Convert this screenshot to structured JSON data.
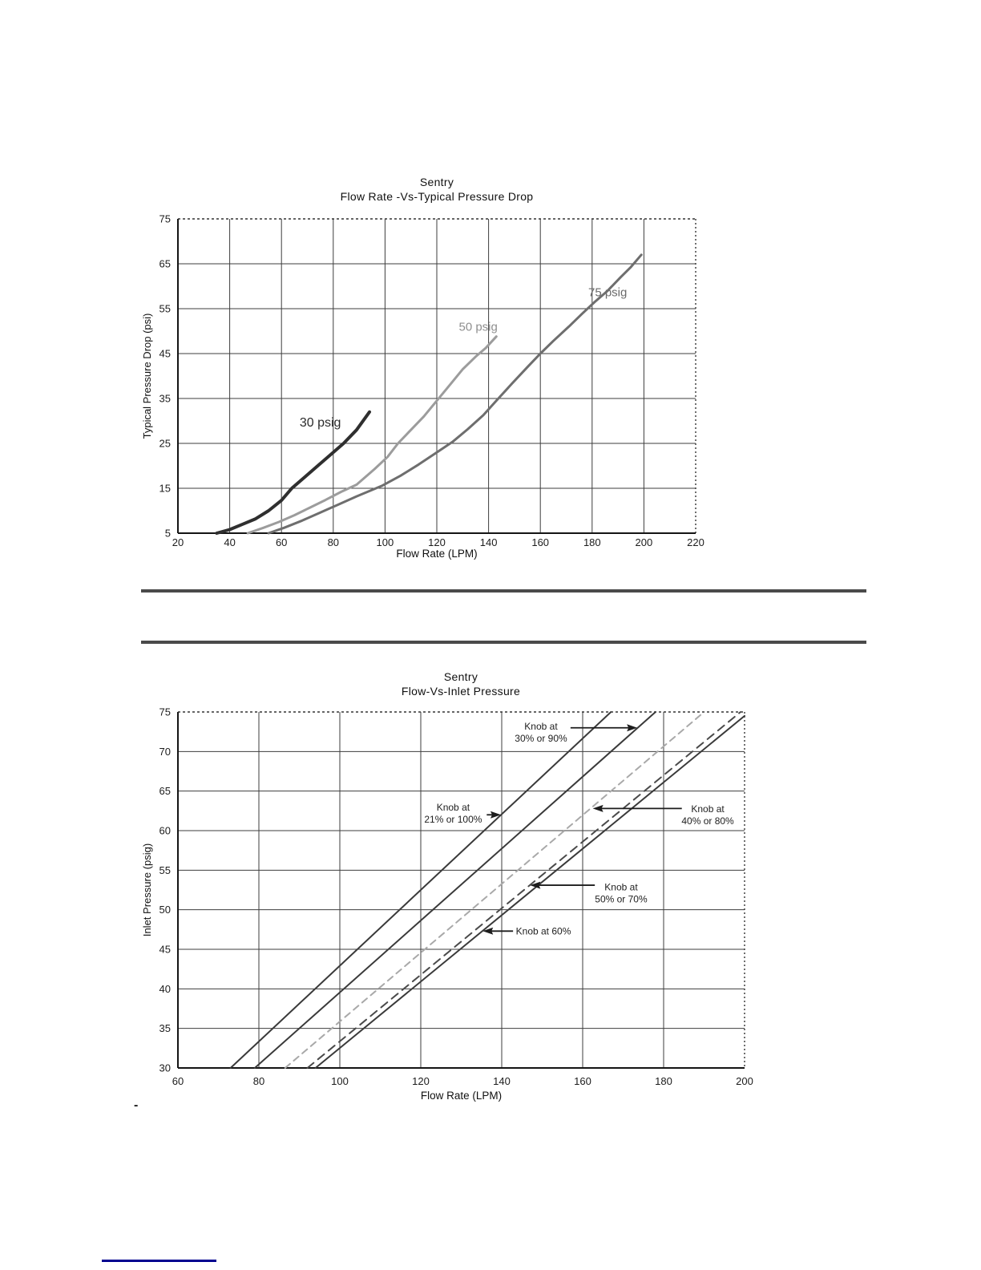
{
  "page": {
    "dash_text": "-",
    "divider_color": "#4a4a4a",
    "link_line_color": "#00008f",
    "grid_color": "#3d3d3d",
    "axis_color": "#141414",
    "text_color": "#1c1c1c"
  },
  "chart_data": [
    {
      "type": "line",
      "title": "Sentry",
      "subtitle": "Flow Rate -Vs-Typical Pressure Drop",
      "xlabel": "Flow Rate (LPM)",
      "ylabel": "Typical Pressure Drop (psi)",
      "xlim": [
        20,
        220
      ],
      "ylim": [
        5,
        75
      ],
      "xstep": 20,
      "ystep": 10,
      "grid": true,
      "legend": "inline-labels",
      "series": [
        {
          "name": "30 psig",
          "color": "#2f2f2f",
          "width": 4,
          "dash": "",
          "points": [
            [
              35,
              5
            ],
            [
              40,
              5.8
            ],
            [
              45,
              7
            ],
            [
              50,
              8.2
            ],
            [
              55,
              10
            ],
            [
              60,
              12.3
            ],
            [
              64,
              15
            ],
            [
              69,
              17.5
            ],
            [
              74,
              20
            ],
            [
              79,
              22.5
            ],
            [
              84,
              25
            ],
            [
              89,
              28
            ],
            [
              94,
              32
            ]
          ]
        },
        {
          "name": "50 psig",
          "color": "#9c9c9c",
          "width": 3,
          "dash": "",
          "points": [
            [
              47,
              5
            ],
            [
              53,
              6.2
            ],
            [
              59,
              7.5
            ],
            [
              65,
              9
            ],
            [
              71,
              10.7
            ],
            [
              77,
              12.4
            ],
            [
              83,
              14.2
            ],
            [
              89,
              15.8
            ],
            [
              96,
              19.3
            ],
            [
              101,
              22
            ],
            [
              105,
              25
            ],
            [
              110,
              28
            ],
            [
              115,
              31
            ],
            [
              120,
              34.5
            ],
            [
              125,
              38
            ],
            [
              130,
              41.5
            ],
            [
              135,
              44.3
            ],
            [
              139,
              46.3
            ],
            [
              143,
              48.8
            ]
          ]
        },
        {
          "name": "75 psig",
          "color": "#6e6e6e",
          "width": 3,
          "dash": "",
          "points": [
            [
              55,
              5
            ],
            [
              61,
              6.2
            ],
            [
              68,
              7.8
            ],
            [
              75,
              9.6
            ],
            [
              82,
              11.4
            ],
            [
              89,
              13.2
            ],
            [
              99,
              15.6
            ],
            [
              106,
              17.8
            ],
            [
              113,
              20.3
            ],
            [
              120,
              23
            ],
            [
              126,
              25.3
            ],
            [
              132,
              28.2
            ],
            [
              138,
              31.3
            ],
            [
              143,
              34.5
            ],
            [
              149,
              38.3
            ],
            [
              155,
              42
            ],
            [
              160,
              45
            ],
            [
              165,
              47.8
            ],
            [
              171,
              51
            ],
            [
              176,
              53.8
            ],
            [
              181,
              56.5
            ],
            [
              186,
              59
            ],
            [
              191,
              62
            ],
            [
              195,
              64.3
            ],
            [
              199,
              67
            ]
          ]
        }
      ],
      "annotations": [
        {
          "lines": [
            "30 psig"
          ],
          "x": 75,
          "y": 29.5,
          "size": 16,
          "color": "#2b2b2b"
        },
        {
          "lines": [
            "50 psig"
          ],
          "x": 136,
          "y": 50.8,
          "size": 15,
          "color": "#8f8f8f"
        },
        {
          "lines": [
            "75 psig"
          ],
          "x": 186,
          "y": 58.5,
          "size": 15,
          "color": "#6b6b6b"
        }
      ]
    },
    {
      "type": "line",
      "title": "Sentry",
      "subtitle": "Flow-Vs-Inlet Pressure",
      "xlabel": "Flow Rate (LPM)",
      "ylabel": "Inlet Pressure (psig)",
      "xlim": [
        60,
        200
      ],
      "ylim": [
        30,
        75
      ],
      "xstep": 20,
      "ystep": 5,
      "grid": true,
      "legend": "inline-labels",
      "series": [
        {
          "name": "Knob at 21% or 100%",
          "color": "#3a3a3a",
          "width": 2,
          "dash": "",
          "points": [
            [
              73,
              30
            ],
            [
              167,
              75
            ]
          ]
        },
        {
          "name": "Knob at 30% or 90%",
          "color": "#3a3a3a",
          "width": 2,
          "dash": "",
          "points": [
            [
              79,
              30
            ],
            [
              178,
              75
            ]
          ]
        },
        {
          "name": "Knob at 40% or 80%",
          "color": "#a9a9a9",
          "width": 2,
          "dash": "8 6",
          "points": [
            [
              86.5,
              30
            ],
            [
              190,
              75
            ]
          ]
        },
        {
          "name": "Knob at 50% or 70%",
          "color": "#4a4a4a",
          "width": 2,
          "dash": "10 7",
          "points": [
            [
              92,
              30
            ],
            [
              199,
              75
            ]
          ]
        },
        {
          "name": "Knob at 60%",
          "color": "#3a3a3a",
          "width": 2,
          "dash": "",
          "points": [
            [
              94,
              30
            ],
            [
              200,
              74.5
            ]
          ]
        }
      ],
      "annotations": [
        {
          "lines": [
            "Knob at",
            "30% or 90%"
          ],
          "x": 149.7,
          "y": 72.4,
          "size": 12,
          "color": "#1e1e1e",
          "arrow": {
            "from": [
              157,
              73
            ],
            "to": [
              173.5,
              73
            ]
          }
        },
        {
          "lines": [
            "Knob at",
            "21% or 100%"
          ],
          "x": 128,
          "y": 62.2,
          "size": 12,
          "color": "#1e1e1e",
          "arrow": {
            "from": [
              136.3,
              62
            ],
            "to": [
              139.8,
              62
            ]
          }
        },
        {
          "lines": [
            "Knob at",
            "40% or 80%"
          ],
          "x": 190.9,
          "y": 62,
          "size": 12,
          "color": "#1e1e1e",
          "arrow": {
            "from": [
              184.5,
              62.8
            ],
            "to": [
              162.5,
              62.8
            ]
          }
        },
        {
          "lines": [
            "Knob at",
            "50% or 70%"
          ],
          "x": 169.5,
          "y": 52.1,
          "size": 12,
          "color": "#1e1e1e",
          "arrow": {
            "from": [
              163,
              53.1
            ],
            "to": [
              147,
              53.1
            ]
          }
        },
        {
          "lines": [
            "Knob at 60%"
          ],
          "x": 150.3,
          "y": 47.3,
          "size": 12,
          "color": "#1e1e1e",
          "arrow": {
            "from": [
              142.8,
              47.3
            ],
            "to": [
              135.3,
              47.3
            ]
          }
        }
      ]
    }
  ]
}
